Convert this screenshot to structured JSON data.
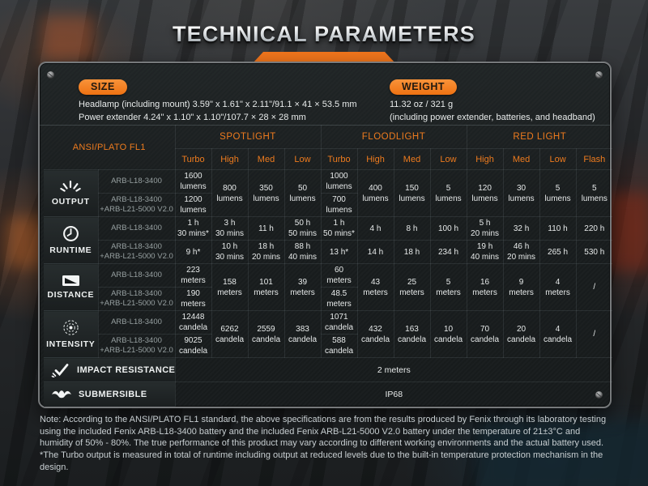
{
  "page_title": "TECHNICAL PARAMETERS",
  "accent_color": "#f0751c",
  "size_section": {
    "size_label": "SIZE",
    "size_lines": [
      "Headlamp (including mount)  3.59\" x 1.61\" x 2.11\"/91.1 × 41 × 53.5 mm",
      "Power extender  4.24\" x 1.10\" x 1.10\"/107.7 × 28 × 28 mm"
    ],
    "weight_label": "WEIGHT",
    "weight_lines": [
      "11.32 oz / 321 g",
      "(including power extender, batteries, and headband)"
    ]
  },
  "table": {
    "corner_label": "ANSI/PLATO FL1",
    "groups": [
      {
        "label": "SPOTLIGHT",
        "modes": [
          "Turbo",
          "High",
          "Med",
          "Low"
        ]
      },
      {
        "label": "FLOODLIGHT",
        "modes": [
          "Turbo",
          "High",
          "Med",
          "Low"
        ]
      },
      {
        "label": "RED LIGHT",
        "modes": [
          "High",
          "Med",
          "Low",
          "Flash"
        ]
      }
    ],
    "batteries": [
      "ARB-L18-3400",
      "ARB-L18-3400\n+ARB-L21-5000 V2.0"
    ],
    "metrics": [
      {
        "name": "OUTPUT",
        "icon": "output-icon",
        "cells": [
          {
            "split": [
              "1600\nlumens",
              "1200\nlumens"
            ]
          },
          {
            "merged": "800\nlumens"
          },
          {
            "merged": "350\nlumens"
          },
          {
            "merged": "50\nlumens"
          },
          {
            "split": [
              "1000\nlumens",
              "700\nlumens"
            ]
          },
          {
            "merged": "400\nlumens"
          },
          {
            "merged": "150\nlumens"
          },
          {
            "merged": "5\nlumens"
          },
          {
            "merged": "120\nlumens"
          },
          {
            "merged": "30\nlumens"
          },
          {
            "merged": "5\nlumens"
          },
          {
            "merged": "5\nlumens"
          }
        ]
      },
      {
        "name": "RUNTIME",
        "icon": "runtime-icon",
        "cells": [
          {
            "split": [
              "1 h\n30 mins*",
              "9 h*"
            ]
          },
          {
            "split": [
              "3 h\n30 mins",
              "10 h\n30 mins"
            ]
          },
          {
            "split": [
              "11 h",
              "18 h\n20 mins"
            ]
          },
          {
            "split": [
              "50 h\n50 mins",
              "88 h\n40 mins"
            ]
          },
          {
            "split": [
              "1 h\n50 mins*",
              "13 h*"
            ]
          },
          {
            "split": [
              "4 h",
              "14 h"
            ]
          },
          {
            "split": [
              "8 h",
              "18 h"
            ]
          },
          {
            "split": [
              "100 h",
              "234 h"
            ]
          },
          {
            "split": [
              "5 h\n20 mins",
              "19 h\n40 mins"
            ]
          },
          {
            "split": [
              "32 h",
              "46 h\n20 mins"
            ]
          },
          {
            "split": [
              "110 h",
              "265 h"
            ]
          },
          {
            "split": [
              "220 h",
              "530 h"
            ]
          }
        ]
      },
      {
        "name": "DISTANCE",
        "icon": "distance-icon",
        "cells": [
          {
            "split": [
              "223\nmeters",
              "190\nmeters"
            ]
          },
          {
            "merged": "158\nmeters"
          },
          {
            "merged": "101\nmeters"
          },
          {
            "merged": "39\nmeters"
          },
          {
            "split": [
              "60\nmeters",
              "48.5\nmeters"
            ]
          },
          {
            "merged": "43\nmeters"
          },
          {
            "merged": "25\nmeters"
          },
          {
            "merged": "5\nmeters"
          },
          {
            "merged": "16\nmeters"
          },
          {
            "merged": "9\nmeters"
          },
          {
            "merged": "4\nmeters"
          },
          {
            "merged": "/"
          }
        ]
      },
      {
        "name": "INTENSITY",
        "icon": "intensity-icon",
        "cells": [
          {
            "split": [
              "12448\ncandela",
              "9025\ncandela"
            ]
          },
          {
            "merged": "6262\ncandela"
          },
          {
            "merged": "2559\ncandela"
          },
          {
            "merged": "383\ncandela"
          },
          {
            "split": [
              "1071\ncandela",
              "588\ncandela"
            ]
          },
          {
            "merged": "432\ncandela"
          },
          {
            "merged": "163\ncandela"
          },
          {
            "merged": "10\ncandela"
          },
          {
            "merged": "70\ncandela"
          },
          {
            "merged": "20\ncandela"
          },
          {
            "merged": "4\ncandela"
          },
          {
            "merged": "/"
          }
        ]
      }
    ],
    "extra_rows": [
      {
        "label": "IMPACT RESISTANCE",
        "icon": "impact-icon",
        "value": "2 meters"
      },
      {
        "label": "SUBMERSIBLE",
        "icon": "submersible-icon",
        "value": "IP68"
      }
    ]
  },
  "note": {
    "main": "Note: According to the ANSI/PLATO FL1 standard, the above specifications are from the results produced by Fenix through its laboratory testing using the included Fenix ARB-L18-3400 battery and the included Fenix ARB-L21-5000 V2.0 battery under the temperature of 21±3°C and humidity of 50% - 80%. The true performance of this product may vary according to different working environments and the actual battery used.",
    "footnote": "*The Turbo output is measured in total of runtime including output at reduced levels due to the built-in temperature protection mechanism in the design."
  }
}
